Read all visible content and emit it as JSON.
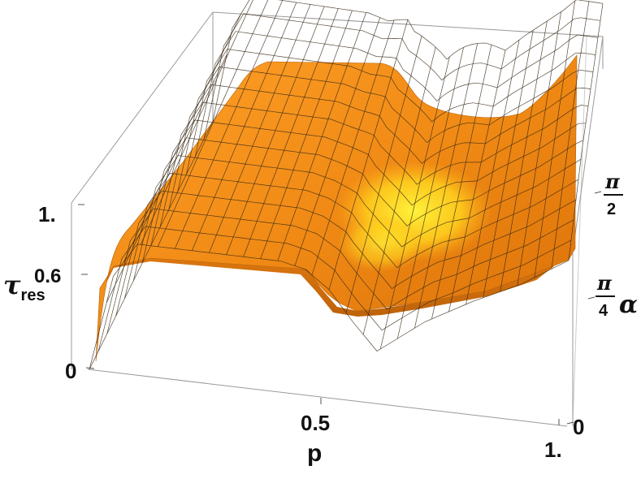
{
  "chart_data": {
    "type": "surface3d",
    "title": "",
    "axes": {
      "p": {
        "label": "p",
        "ticks": [
          "0.5",
          "1."
        ],
        "range": [
          0,
          1
        ]
      },
      "alpha": {
        "label": "α",
        "ticks": [
          {
            "num": "π",
            "den": "4"
          },
          {
            "num": "π",
            "den": "2"
          },
          {
            "plain": "0"
          }
        ],
        "range": [
          "0",
          "π/2"
        ]
      },
      "tau": {
        "label_main": "τ",
        "label_sub": "res",
        "ticks": [
          "1.",
          "0.6",
          "0"
        ],
        "range": [
          0,
          1
        ]
      }
    },
    "mesh": {
      "p_lines": 28,
      "alpha_lines": 14
    },
    "surface_profile_along_p": {
      "p": [
        0.0,
        0.05,
        0.1,
        0.25,
        0.4,
        0.45,
        0.5,
        0.55,
        0.6,
        0.7,
        0.8,
        0.9,
        1.0
      ],
      "tau": [
        0.0,
        0.55,
        0.75,
        0.75,
        0.75,
        0.72,
        0.62,
        0.45,
        0.3,
        0.5,
        0.65,
        0.78,
        0.95
      ]
    },
    "colors": {
      "surface": "#f08a14",
      "highlight": "#ffe22a",
      "mesh": "#3a2a18",
      "box": "#9a9a9a"
    }
  }
}
